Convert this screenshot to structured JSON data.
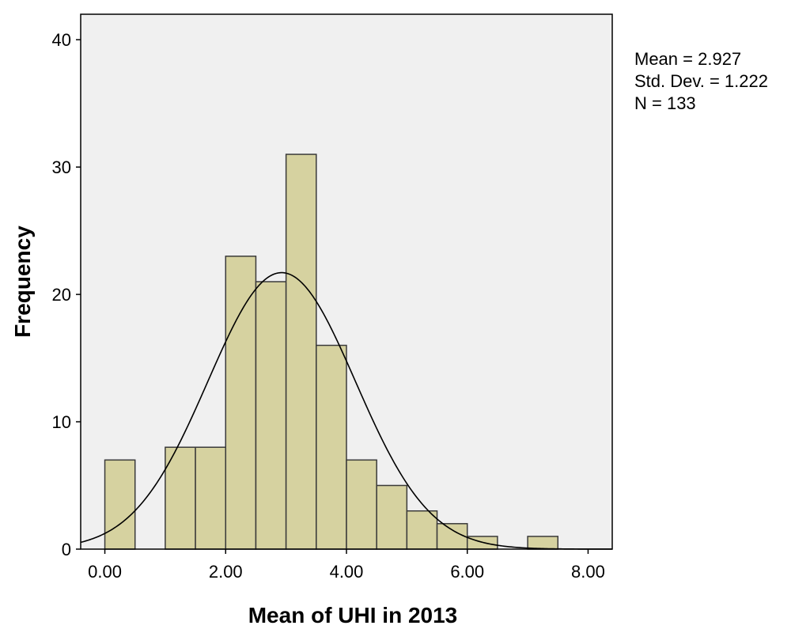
{
  "chart_data": {
    "type": "bar",
    "subtype": "histogram",
    "xlabel": "Mean of UHI in 2013",
    "ylabel": "Frequency",
    "xlim": [
      -0.4,
      8.4
    ],
    "ylim": [
      0,
      42
    ],
    "x_ticks": [
      0,
      2,
      4,
      6,
      8
    ],
    "x_tick_labels": [
      "0.00",
      "2.00",
      "4.00",
      "6.00",
      "8.00"
    ],
    "y_ticks": [
      0,
      10,
      20,
      30,
      40
    ],
    "y_tick_labels": [
      "0",
      "10",
      "20",
      "30",
      "40"
    ],
    "bin_width": 0.5,
    "bins": [
      {
        "start": 0.0,
        "end": 0.5,
        "count": 7
      },
      {
        "start": 0.5,
        "end": 1.0,
        "count": 0
      },
      {
        "start": 1.0,
        "end": 1.5,
        "count": 8
      },
      {
        "start": 1.5,
        "end": 2.0,
        "count": 8
      },
      {
        "start": 2.0,
        "end": 2.5,
        "count": 23
      },
      {
        "start": 2.5,
        "end": 3.0,
        "count": 21
      },
      {
        "start": 3.0,
        "end": 3.5,
        "count": 31
      },
      {
        "start": 3.5,
        "end": 4.0,
        "count": 16
      },
      {
        "start": 4.0,
        "end": 4.5,
        "count": 7
      },
      {
        "start": 4.5,
        "end": 5.0,
        "count": 5
      },
      {
        "start": 5.0,
        "end": 5.5,
        "count": 3
      },
      {
        "start": 5.5,
        "end": 6.0,
        "count": 2
      },
      {
        "start": 6.0,
        "end": 6.5,
        "count": 1
      },
      {
        "start": 6.5,
        "end": 7.0,
        "count": 0
      },
      {
        "start": 7.0,
        "end": 7.5,
        "count": 1
      }
    ],
    "normal_curve": {
      "mean": 2.927,
      "sd": 1.222,
      "n": 133
    },
    "stats_lines": [
      "Mean = 2.927",
      "Std. Dev. = 1.222",
      "N = 133"
    ],
    "colors": {
      "bar_fill": "#d6d2a0",
      "bar_stroke": "#3a3a3a",
      "plot_background": "#f0f0f0",
      "curve": "#000000"
    },
    "grid": false,
    "legend": "none"
  }
}
